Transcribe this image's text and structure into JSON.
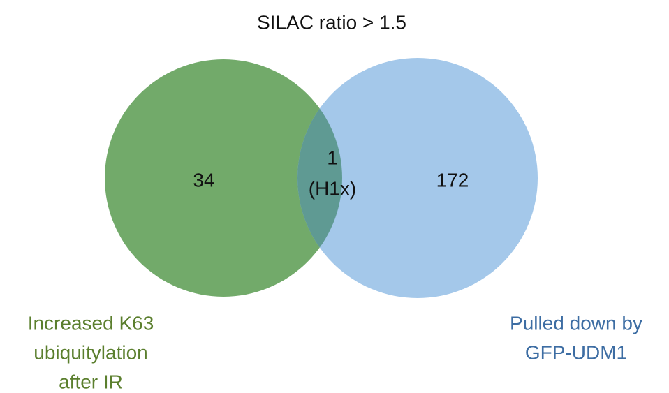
{
  "title": "SILAC ratio > 1.5",
  "sets": [
    {
      "label": [
        "Increased K63",
        "ubiquitylation",
        "after IR"
      ],
      "count": 34
    },
    {
      "label": [
        "Pulled down by",
        "GFP-UDM1"
      ],
      "count": 172
    }
  ],
  "overlap": {
    "count": 1,
    "note": "(H1x)"
  }
}
